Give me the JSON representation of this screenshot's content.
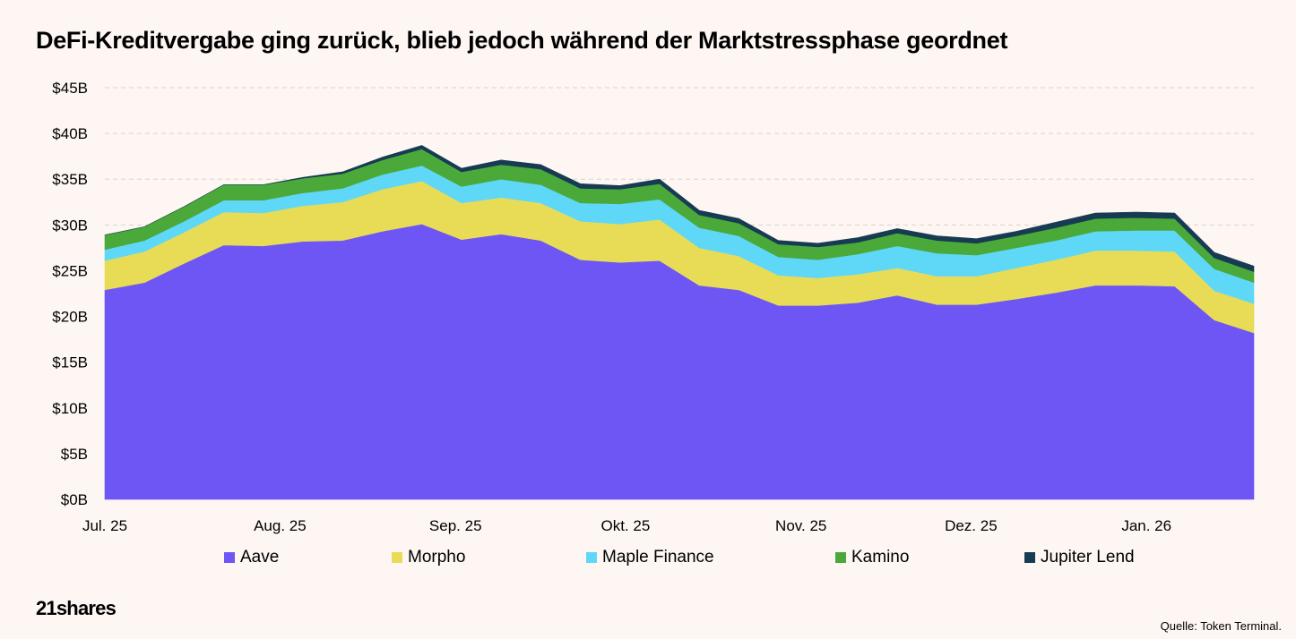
{
  "title": "DeFi-Kreditvergabe ging zurück, blieb jedoch während der Marktstressphase geordnet",
  "brand": "21shares",
  "source": "Quelle: Token Terminal.",
  "chart_data": {
    "type": "area",
    "stacked": true,
    "title": "DeFi-Kreditvergabe ging zurück, blieb jedoch während der Marktstressphase geordnet",
    "xlabel": "",
    "ylabel": "",
    "ylim": [
      0,
      45
    ],
    "yticks": [
      0,
      5,
      10,
      15,
      20,
      25,
      30,
      35,
      40,
      45
    ],
    "ytick_labels": [
      "$0B",
      "$5B",
      "$10B",
      "$15B",
      "$20B",
      "$25B",
      "$30B",
      "$35B",
      "$40B",
      "$45B"
    ],
    "grid": true,
    "legend_position": "bottom",
    "x_ticks": [
      {
        "label": "Jul. 25",
        "index": 0
      },
      {
        "label": "Aug. 25",
        "index": 4.42
      },
      {
        "label": "Sep. 25",
        "index": 8.85
      },
      {
        "label": "Okt. 25",
        "index": 13.14
      },
      {
        "label": "Nov. 25",
        "index": 17.57
      },
      {
        "label": "Dez. 25",
        "index": 21.86
      },
      {
        "label": "Jan. 26",
        "index": 26.29
      }
    ],
    "points_count": 30,
    "series": [
      {
        "name": "Aave",
        "color": "#6E56F5",
        "values": [
          22.9,
          23.7,
          25.8,
          27.8,
          27.7,
          28.2,
          28.3,
          29.3,
          30.1,
          28.4,
          29.0,
          28.3,
          26.2,
          25.9,
          26.1,
          23.4,
          22.9,
          21.2,
          21.2,
          21.5,
          22.3,
          21.3,
          21.3,
          21.9,
          22.6,
          23.4,
          23.4,
          23.3,
          19.6,
          18.2
        ]
      },
      {
        "name": "Morpho",
        "color": "#E8DC56",
        "values": [
          3.2,
          3.4,
          3.4,
          3.6,
          3.6,
          3.9,
          4.2,
          4.6,
          4.7,
          4.0,
          4.0,
          4.1,
          4.2,
          4.2,
          4.5,
          4.1,
          3.7,
          3.3,
          3.0,
          3.1,
          3.0,
          3.1,
          3.1,
          3.4,
          3.6,
          3.8,
          3.8,
          3.8,
          3.2,
          3.2
        ]
      },
      {
        "name": "Maple Finance",
        "color": "#5FD8F8",
        "values": [
          1.2,
          1.2,
          1.2,
          1.3,
          1.4,
          1.4,
          1.5,
          1.6,
          1.7,
          1.8,
          2.0,
          2.0,
          2.0,
          2.2,
          2.2,
          2.2,
          2.2,
          2.0,
          2.0,
          2.2,
          2.4,
          2.5,
          2.3,
          2.2,
          2.1,
          2.1,
          2.2,
          2.3,
          2.4,
          2.3
        ]
      },
      {
        "name": "Kamino",
        "color": "#4BA93A",
        "values": [
          1.6,
          1.5,
          1.6,
          1.7,
          1.7,
          1.6,
          1.6,
          1.6,
          1.8,
          1.6,
          1.6,
          1.7,
          1.6,
          1.6,
          1.7,
          1.4,
          1.4,
          1.4,
          1.4,
          1.3,
          1.4,
          1.4,
          1.3,
          1.3,
          1.4,
          1.4,
          1.4,
          1.3,
          1.2,
          1.2
        ]
      },
      {
        "name": "Jupiter Lend",
        "color": "#173B52",
        "values": [
          0.0,
          0.0,
          0.0,
          0.0,
          0.0,
          0.1,
          0.2,
          0.3,
          0.4,
          0.4,
          0.5,
          0.5,
          0.5,
          0.4,
          0.5,
          0.5,
          0.5,
          0.4,
          0.4,
          0.5,
          0.5,
          0.5,
          0.5,
          0.5,
          0.6,
          0.6,
          0.6,
          0.6,
          0.6,
          0.6
        ]
      }
    ]
  }
}
